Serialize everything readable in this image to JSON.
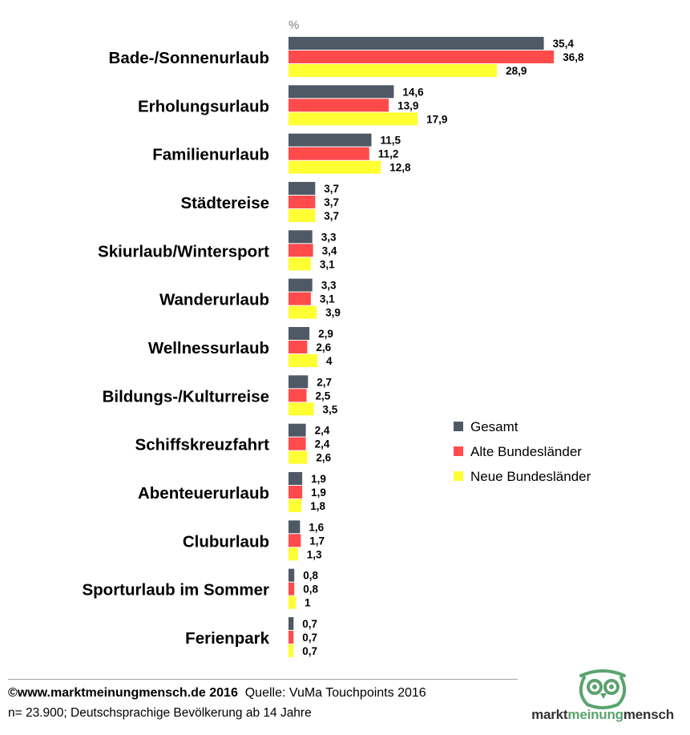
{
  "chart_data": {
    "type": "bar",
    "orientation": "horizontal",
    "unit": "%",
    "categories": [
      "Bade-/Sonnenurlaub",
      "Erholungsurlaub",
      "Familienurlaub",
      "Städtereise",
      "Skiurlaub/Wintersport",
      "Wanderurlaub",
      "Wellnessurlaub",
      "Bildungs-/Kulturreise",
      "Schiffskreuzfahrt",
      "Abenteuerurlaub",
      "Cluburlaub",
      "Sporturlaub im Sommer",
      "Ferienpark"
    ],
    "series": [
      {
        "name": "Gesamt",
        "color": "#4f5966",
        "values": [
          35.4,
          14.6,
          11.5,
          3.7,
          3.3,
          3.3,
          2.9,
          2.7,
          2.4,
          1.9,
          1.6,
          0.8,
          0.7
        ],
        "labels": [
          "35,4",
          "14,6",
          "11,5",
          "3,7",
          "3,3",
          "3,3",
          "2,9",
          "2,7",
          "2,4",
          "1,9",
          "1,6",
          "0,8",
          "0,7"
        ]
      },
      {
        "name": "Alte Bundesländer",
        "color": "#ff4b4b",
        "values": [
          36.8,
          13.9,
          11.2,
          3.7,
          3.4,
          3.1,
          2.6,
          2.5,
          2.4,
          1.9,
          1.7,
          0.8,
          0.7
        ],
        "labels": [
          "36,8",
          "13,9",
          "11,2",
          "3,7",
          "3,4",
          "3,1",
          "2,6",
          "2,5",
          "2,4",
          "1,9",
          "1,7",
          "0,8",
          "0,7"
        ]
      },
      {
        "name": "Neue Bundesländer",
        "color": "#ffff33",
        "values": [
          28.9,
          17.9,
          12.8,
          3.7,
          3.1,
          3.9,
          4,
          3.5,
          2.6,
          1.8,
          1.3,
          1,
          0.7
        ],
        "labels": [
          "28,9",
          "17,9",
          "12,8",
          "3,7",
          "3,1",
          "3,9",
          "4",
          "3,5",
          "2,6",
          "1,8",
          "1,3",
          "1",
          "0,7"
        ]
      }
    ],
    "legend_position": "right-bottom",
    "grid": false
  },
  "footer": {
    "copyright": "©www.marktmeinungmensch.de 2016",
    "source": "Quelle: VuMa Touchpoints 2016",
    "note": "n= 23.900; Deutschsprachige Bevölkerung ab 14 Jahre"
  },
  "logo": {
    "word1": "markt",
    "word2": "meinung",
    "word3": "mensch",
    "color": "#5aa36e",
    "icon": "owl-icon"
  }
}
